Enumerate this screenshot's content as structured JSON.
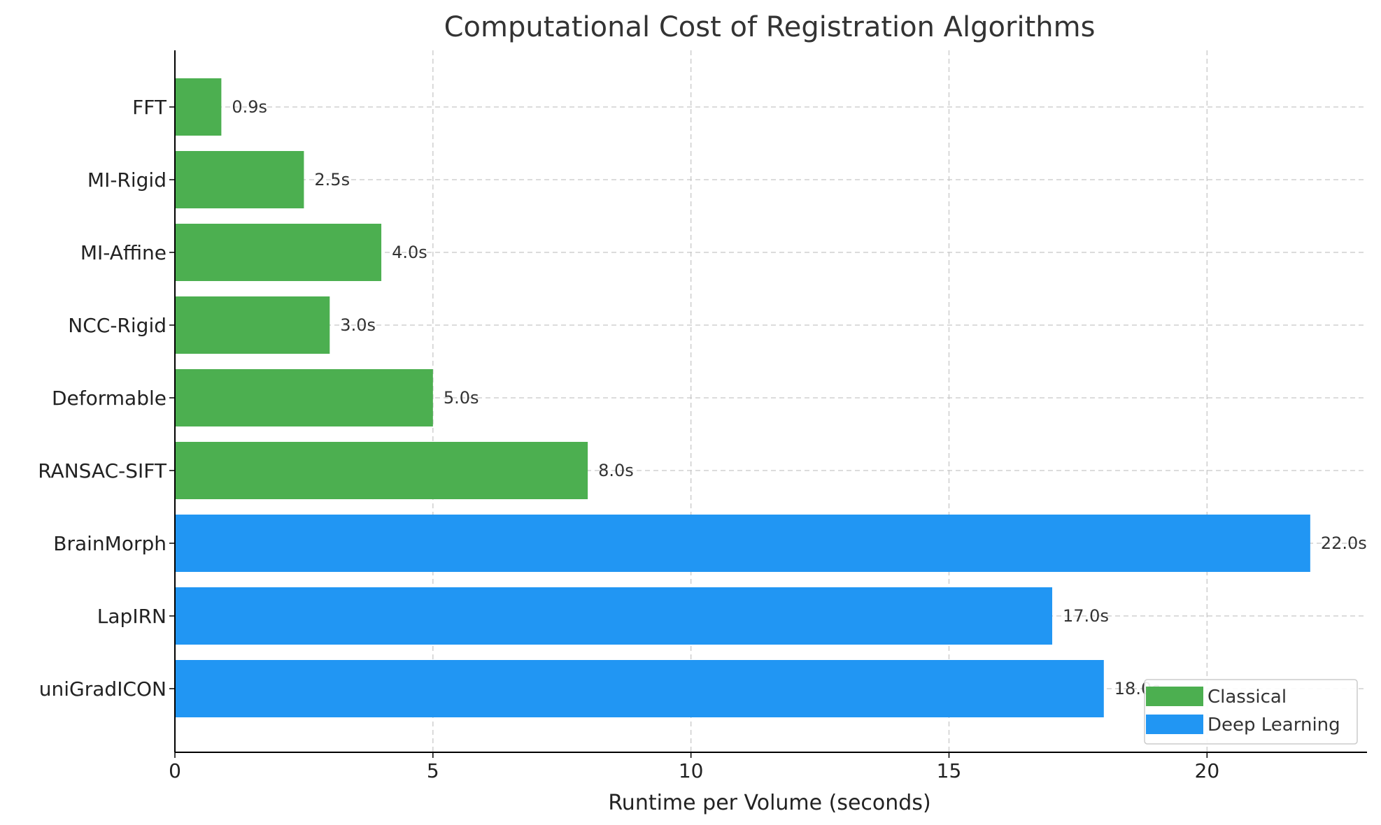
{
  "chart_data": {
    "type": "bar",
    "orientation": "horizontal",
    "title": "Computational Cost of Registration Algorithms",
    "xlabel": "Runtime per Volume (seconds)",
    "ylabel": "",
    "xlim": [
      0,
      23.1
    ],
    "xticks": [
      0,
      5,
      10,
      15,
      20
    ],
    "grid": true,
    "legend_position": "bottom-right",
    "categories": [
      "FFT",
      "MI-Rigid",
      "MI-Affine",
      "NCC-Rigid",
      "Deformable",
      "RANSAC-SIFT",
      "BrainMorph",
      "LapIRN",
      "uniGradICON"
    ],
    "values": [
      0.9,
      2.5,
      4.0,
      3.0,
      5.0,
      8.0,
      22.0,
      17.0,
      18.0
    ],
    "value_labels": [
      "0.9s",
      "2.5s",
      "4.0s",
      "3.0s",
      "5.0s",
      "8.0s",
      "22.0s",
      "17.0s",
      "18.0s"
    ],
    "groups": [
      "Classical",
      "Classical",
      "Classical",
      "Classical",
      "Classical",
      "Classical",
      "Deep Learning",
      "Deep Learning",
      "Deep Learning"
    ],
    "legend": [
      {
        "name": "Classical",
        "color": "#4caf50"
      },
      {
        "name": "Deep Learning",
        "color": "#2196f3"
      }
    ]
  }
}
